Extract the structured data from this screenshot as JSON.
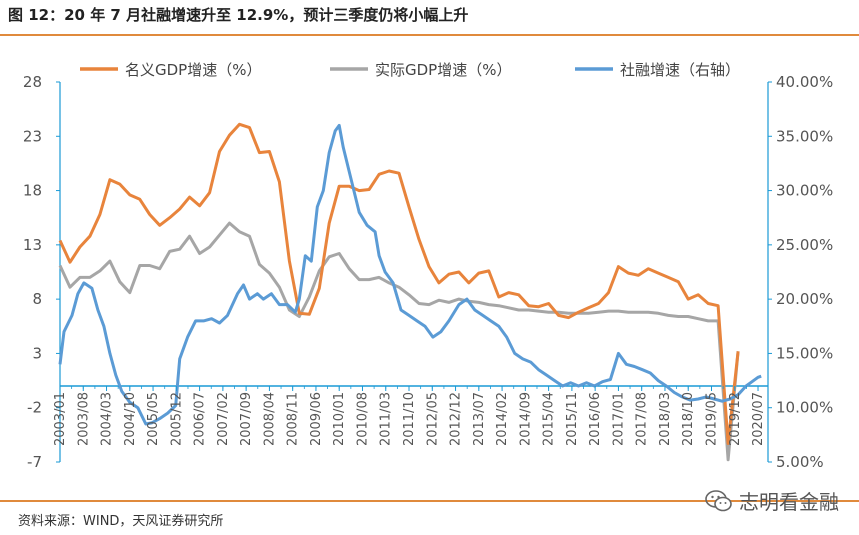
{
  "header": {
    "title": "图 12：20 年 7 月社融增速升至 12.9%，预计三季度仍将小幅上升"
  },
  "footer": {
    "source": "资料来源：WIND，天风证券研究所",
    "watermark": "志明看金融",
    "watermark_icon": "wechat-icon"
  },
  "colors": {
    "nominal": "#e8843c",
    "real": "#a6a6a6",
    "tsf": "#5b9bd5",
    "rule": "#e08a3c",
    "axis": "#1a9ad6"
  },
  "chart_data": {
    "type": "line",
    "title": "",
    "legend_position": "top",
    "left_axis": {
      "ylim": [
        -7,
        28
      ],
      "ticks": [
        28,
        23,
        18,
        13,
        8,
        3,
        -2,
        -7
      ]
    },
    "right_axis": {
      "ylim": [
        5,
        40
      ],
      "ticks": [
        "40.00%",
        "35.00%",
        "30.00%",
        "25.00%",
        "20.00%",
        "15.00%",
        "10.00%",
        "5.00%"
      ]
    },
    "x_labels": [
      "2003/01",
      "2003/08",
      "2004/03",
      "2004/10",
      "2005/05",
      "2005/12",
      "2006/07",
      "2007/02",
      "2007/09",
      "2008/04",
      "2008/11",
      "2009/06",
      "2010/01",
      "2010/08",
      "2011/03",
      "2011/10",
      "2012/05",
      "2012/12",
      "2013/07",
      "2014/02",
      "2014/09",
      "2015/04",
      "2015/11",
      "2016/06",
      "2017/01",
      "2017/08",
      "2018/03",
      "2018/10",
      "2019/05",
      "2019/12",
      "2020/07"
    ],
    "series": [
      {
        "name": "名义GDP增速（%）",
        "axis": "left",
        "points": [
          [
            2003.0,
            13.4
          ],
          [
            2003.25,
            11.4
          ],
          [
            2003.5,
            12.8
          ],
          [
            2003.75,
            13.8
          ],
          [
            2004.0,
            15.8
          ],
          [
            2004.25,
            19.0
          ],
          [
            2004.5,
            18.6
          ],
          [
            2004.75,
            17.6
          ],
          [
            2005.0,
            17.2
          ],
          [
            2005.25,
            15.8
          ],
          [
            2005.5,
            14.8
          ],
          [
            2005.75,
            15.5
          ],
          [
            2006.0,
            16.3
          ],
          [
            2006.25,
            17.4
          ],
          [
            2006.5,
            16.6
          ],
          [
            2006.75,
            17.8
          ],
          [
            2007.0,
            21.6
          ],
          [
            2007.25,
            23.1
          ],
          [
            2007.5,
            24.1
          ],
          [
            2007.75,
            23.8
          ],
          [
            2008.0,
            21.5
          ],
          [
            2008.25,
            21.6
          ],
          [
            2008.5,
            18.8
          ],
          [
            2008.75,
            11.5
          ],
          [
            2009.0,
            6.7
          ],
          [
            2009.25,
            6.6
          ],
          [
            2009.5,
            9.0
          ],
          [
            2009.75,
            15.0
          ],
          [
            2010.0,
            18.4
          ],
          [
            2010.25,
            18.4
          ],
          [
            2010.5,
            18.0
          ],
          [
            2010.75,
            18.1
          ],
          [
            2011.0,
            19.5
          ],
          [
            2011.25,
            19.8
          ],
          [
            2011.5,
            19.6
          ],
          [
            2011.75,
            16.5
          ],
          [
            2012.0,
            13.5
          ],
          [
            2012.25,
            11.0
          ],
          [
            2012.5,
            9.5
          ],
          [
            2012.75,
            10.3
          ],
          [
            2013.0,
            10.5
          ],
          [
            2013.25,
            9.5
          ],
          [
            2013.5,
            10.4
          ],
          [
            2013.75,
            10.6
          ],
          [
            2014.0,
            8.2
          ],
          [
            2014.25,
            8.6
          ],
          [
            2014.5,
            8.4
          ],
          [
            2014.75,
            7.4
          ],
          [
            2015.0,
            7.3
          ],
          [
            2015.25,
            7.6
          ],
          [
            2015.5,
            6.5
          ],
          [
            2015.75,
            6.3
          ],
          [
            2016.0,
            6.8
          ],
          [
            2016.25,
            7.2
          ],
          [
            2016.5,
            7.6
          ],
          [
            2016.75,
            8.6
          ],
          [
            2017.0,
            11.0
          ],
          [
            2017.25,
            10.4
          ],
          [
            2017.5,
            10.2
          ],
          [
            2017.75,
            10.8
          ],
          [
            2018.0,
            10.4
          ],
          [
            2018.25,
            10.0
          ],
          [
            2018.5,
            9.6
          ],
          [
            2018.75,
            8.0
          ],
          [
            2019.0,
            8.4
          ],
          [
            2019.25,
            7.6
          ],
          [
            2019.5,
            7.4
          ],
          [
            2019.75,
            -5.3
          ],
          [
            2020.0,
            3.2
          ]
        ]
      },
      {
        "name": "实际GDP增速（%）",
        "axis": "left",
        "points": [
          [
            2003.0,
            11.1
          ],
          [
            2003.25,
            9.1
          ],
          [
            2003.5,
            10.0
          ],
          [
            2003.75,
            10.0
          ],
          [
            2004.0,
            10.6
          ],
          [
            2004.25,
            11.5
          ],
          [
            2004.5,
            9.6
          ],
          [
            2004.75,
            8.6
          ],
          [
            2005.0,
            11.1
          ],
          [
            2005.25,
            11.1
          ],
          [
            2005.5,
            10.8
          ],
          [
            2005.75,
            12.4
          ],
          [
            2006.0,
            12.6
          ],
          [
            2006.25,
            13.8
          ],
          [
            2006.5,
            12.2
          ],
          [
            2006.75,
            12.8
          ],
          [
            2007.0,
            13.9
          ],
          [
            2007.25,
            15.0
          ],
          [
            2007.5,
            14.2
          ],
          [
            2007.75,
            13.8
          ],
          [
            2008.0,
            11.2
          ],
          [
            2008.25,
            10.4
          ],
          [
            2008.5,
            9.1
          ],
          [
            2008.75,
            7.0
          ],
          [
            2009.0,
            6.4
          ],
          [
            2009.25,
            8.2
          ],
          [
            2009.5,
            10.6
          ],
          [
            2009.75,
            11.9
          ],
          [
            2010.0,
            12.2
          ],
          [
            2010.25,
            10.8
          ],
          [
            2010.5,
            9.8
          ],
          [
            2010.75,
            9.8
          ],
          [
            2011.0,
            10.0
          ],
          [
            2011.25,
            9.5
          ],
          [
            2011.5,
            9.1
          ],
          [
            2011.75,
            8.4
          ],
          [
            2012.0,
            7.6
          ],
          [
            2012.25,
            7.5
          ],
          [
            2012.5,
            7.9
          ],
          [
            2012.75,
            7.7
          ],
          [
            2013.0,
            8.0
          ],
          [
            2013.25,
            7.8
          ],
          [
            2013.5,
            7.7
          ],
          [
            2013.75,
            7.5
          ],
          [
            2014.0,
            7.4
          ],
          [
            2014.25,
            7.2
          ],
          [
            2014.5,
            7.0
          ],
          [
            2014.75,
            7.0
          ],
          [
            2015.0,
            6.9
          ],
          [
            2015.25,
            6.8
          ],
          [
            2015.5,
            6.8
          ],
          [
            2015.75,
            6.7
          ],
          [
            2016.0,
            6.7
          ],
          [
            2016.25,
            6.7
          ],
          [
            2016.5,
            6.8
          ],
          [
            2016.75,
            6.9
          ],
          [
            2017.0,
            6.9
          ],
          [
            2017.25,
            6.8
          ],
          [
            2017.5,
            6.8
          ],
          [
            2017.75,
            6.8
          ],
          [
            2018.0,
            6.7
          ],
          [
            2018.25,
            6.5
          ],
          [
            2018.5,
            6.4
          ],
          [
            2018.75,
            6.4
          ],
          [
            2019.0,
            6.2
          ],
          [
            2019.25,
            6.0
          ],
          [
            2019.5,
            6.0
          ],
          [
            2019.75,
            -6.8
          ],
          [
            2020.0,
            3.2
          ]
        ]
      },
      {
        "name": "社融增速（右轴）",
        "axis": "right",
        "points": [
          [
            2003.0,
            14.0
          ],
          [
            2003.1,
            17.0
          ],
          [
            2003.3,
            18.5
          ],
          [
            2003.45,
            20.5
          ],
          [
            2003.6,
            21.5
          ],
          [
            2003.8,
            21.0
          ],
          [
            2003.95,
            19.0
          ],
          [
            2004.1,
            17.5
          ],
          [
            2004.25,
            15.0
          ],
          [
            2004.4,
            13.0
          ],
          [
            2004.55,
            11.5
          ],
          [
            2004.75,
            10.5
          ],
          [
            2004.95,
            10.0
          ],
          [
            2005.15,
            8.5
          ],
          [
            2005.3,
            8.6
          ],
          [
            2005.5,
            9.0
          ],
          [
            2005.7,
            9.5
          ],
          [
            2005.9,
            10.2
          ],
          [
            2006.0,
            14.5
          ],
          [
            2006.2,
            16.5
          ],
          [
            2006.4,
            18.0
          ],
          [
            2006.6,
            18.0
          ],
          [
            2006.8,
            18.2
          ],
          [
            2007.0,
            17.8
          ],
          [
            2007.2,
            18.5
          ],
          [
            2007.45,
            20.5
          ],
          [
            2007.6,
            21.3
          ],
          [
            2007.75,
            20.0
          ],
          [
            2007.95,
            20.5
          ],
          [
            2008.1,
            20.0
          ],
          [
            2008.3,
            20.5
          ],
          [
            2008.5,
            19.5
          ],
          [
            2008.7,
            19.5
          ],
          [
            2008.9,
            18.8
          ],
          [
            2009.0,
            20.0
          ],
          [
            2009.15,
            24.0
          ],
          [
            2009.3,
            23.5
          ],
          [
            2009.45,
            28.5
          ],
          [
            2009.6,
            30.0
          ],
          [
            2009.75,
            33.5
          ],
          [
            2009.9,
            35.5
          ],
          [
            2010.0,
            36.0
          ],
          [
            2010.1,
            34.0
          ],
          [
            2010.3,
            31.0
          ],
          [
            2010.5,
            28.0
          ],
          [
            2010.7,
            26.8
          ],
          [
            2010.9,
            26.2
          ],
          [
            2011.0,
            24.0
          ],
          [
            2011.15,
            22.5
          ],
          [
            2011.35,
            21.5
          ],
          [
            2011.55,
            19.0
          ],
          [
            2011.75,
            18.5
          ],
          [
            2011.95,
            18.0
          ],
          [
            2012.15,
            17.5
          ],
          [
            2012.35,
            16.5
          ],
          [
            2012.55,
            17.0
          ],
          [
            2012.75,
            18.0
          ],
          [
            2013.0,
            19.5
          ],
          [
            2013.2,
            20.0
          ],
          [
            2013.4,
            19.0
          ],
          [
            2013.6,
            18.5
          ],
          [
            2013.8,
            18.0
          ],
          [
            2014.0,
            17.5
          ],
          [
            2014.2,
            16.5
          ],
          [
            2014.4,
            15.0
          ],
          [
            2014.6,
            14.5
          ],
          [
            2014.8,
            14.2
          ],
          [
            2015.0,
            13.5
          ],
          [
            2015.2,
            13.0
          ],
          [
            2015.4,
            12.5
          ],
          [
            2015.6,
            12.0
          ],
          [
            2015.8,
            12.3
          ],
          [
            2016.0,
            12.0
          ],
          [
            2016.2,
            12.3
          ],
          [
            2016.4,
            12.0
          ],
          [
            2016.6,
            12.4
          ],
          [
            2016.8,
            12.6
          ],
          [
            2017.0,
            15.0
          ],
          [
            2017.2,
            14.0
          ],
          [
            2017.4,
            13.8
          ],
          [
            2017.6,
            13.5
          ],
          [
            2017.8,
            13.2
          ],
          [
            2018.0,
            12.5
          ],
          [
            2018.2,
            12.0
          ],
          [
            2018.4,
            11.4
          ],
          [
            2018.6,
            11.0
          ],
          [
            2018.8,
            10.7
          ],
          [
            2019.0,
            10.8
          ],
          [
            2019.2,
            11.0
          ],
          [
            2019.4,
            10.8
          ],
          [
            2019.6,
            10.6
          ],
          [
            2019.8,
            10.8
          ],
          [
            2020.0,
            11.2
          ],
          [
            2020.2,
            12.0
          ],
          [
            2020.35,
            12.4
          ],
          [
            2020.5,
            12.8
          ],
          [
            2020.58,
            12.9
          ]
        ]
      }
    ]
  }
}
